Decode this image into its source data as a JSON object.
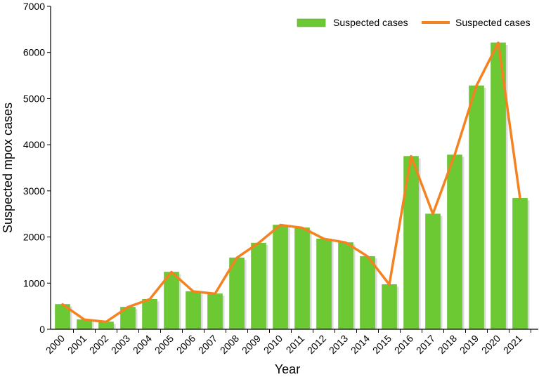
{
  "chart_data": {
    "type": "bar",
    "categories": [
      "2000",
      "2001",
      "2002",
      "2003",
      "2004",
      "2005",
      "2006",
      "2007",
      "2008",
      "2009",
      "2010",
      "2011",
      "2012",
      "2013",
      "2014",
      "2015",
      "2016",
      "2017",
      "2018",
      "2019",
      "2020",
      "2021"
    ],
    "series": [
      {
        "name": "Suspected cases",
        "kind": "bar",
        "color": "#6cc934",
        "values": [
          540,
          210,
          160,
          480,
          650,
          1240,
          820,
          770,
          1550,
          1870,
          2260,
          2200,
          1960,
          1880,
          1580,
          970,
          3750,
          2500,
          3780,
          5280,
          6210,
          2840
        ]
      },
      {
        "name": "Suspected cases",
        "kind": "line",
        "color": "#f58220",
        "values": [
          540,
          210,
          160,
          480,
          650,
          1240,
          820,
          770,
          1550,
          1870,
          2260,
          2200,
          1960,
          1880,
          1580,
          970,
          3750,
          2500,
          3780,
          5280,
          6210,
          2840
        ]
      }
    ],
    "xlabel": "Year",
    "ylabel": "Suspected mpox cases",
    "ylim": [
      0,
      7000
    ],
    "yticks": [
      "0",
      "1000",
      "2000",
      "3000",
      "4000",
      "5000",
      "6000",
      "7000"
    ],
    "grid": false,
    "legend": "top-right"
  }
}
